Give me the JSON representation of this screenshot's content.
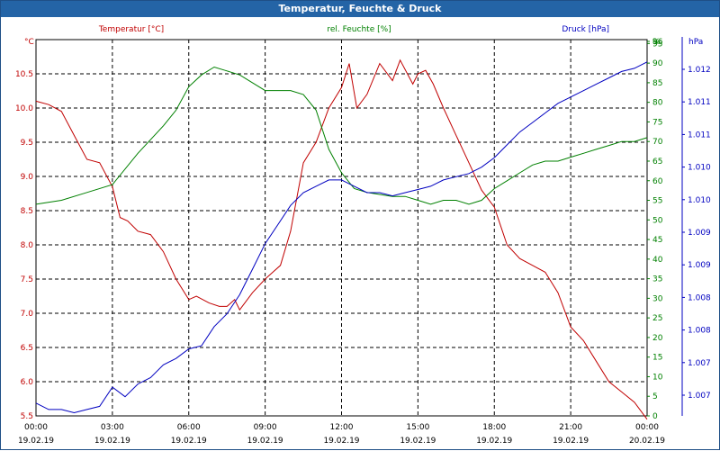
{
  "window": {
    "title": "Temperatur, Feuchte & Druck"
  },
  "colors": {
    "temperature": "#c00000",
    "humidity": "#008000",
    "pressure": "#0000c0",
    "grid": "#000000",
    "title_bar": "#2464a6"
  },
  "chart_data": {
    "type": "line",
    "title": "Temperatur, Feuchte & Druck",
    "legend": [
      "Temperatur [°C]",
      "rel. Feuchte [%]",
      "Druck [hPa]"
    ],
    "axes": {
      "left": {
        "unit": "°C",
        "ylim": [
          5.5,
          11.0
        ],
        "ticks": [
          "10.5",
          "10.0",
          "9.5",
          "9.0",
          "8.5",
          "8.0",
          "7.5",
          "7.0",
          "6.5",
          "6.0",
          "5.5"
        ]
      },
      "right1": {
        "unit": "%",
        "ylim": [
          0,
          96
        ],
        "ticks": [
          "96",
          "95",
          "90",
          "85",
          "80",
          "75",
          "70",
          "65",
          "60",
          "55",
          "50",
          "45",
          "40",
          "35",
          "30",
          "25",
          "20",
          "15",
          "10",
          "5",
          "0"
        ]
      },
      "right2": {
        "unit": "hPa",
        "ylim": [
          1006.6,
          1012.5
        ],
        "ticks": [
          "1.012",
          "1.011",
          "1.011",
          "1.010",
          "1.010",
          "1.009",
          "1.009",
          "1.008",
          "1.008",
          "1.007",
          "1.007"
        ]
      }
    },
    "xlim": [
      0,
      24
    ],
    "x_ticks": [
      {
        "time": "00:00",
        "date": "19.02.19"
      },
      {
        "time": "03:00",
        "date": "19.02.19"
      },
      {
        "time": "06:00",
        "date": "19.02.19"
      },
      {
        "time": "09:00",
        "date": "19.02.19"
      },
      {
        "time": "12:00",
        "date": "19.02.19"
      },
      {
        "time": "15:00",
        "date": "19.02.19"
      },
      {
        "time": "18:00",
        "date": "19.02.19"
      },
      {
        "time": "21:00",
        "date": "19.02.19"
      },
      {
        "time": "00:00",
        "date": "20.02.19"
      }
    ],
    "series": [
      {
        "name": "Temperatur [°C]",
        "axis": "left",
        "color": "#c00000",
        "x": [
          0,
          0.5,
          1,
          1.5,
          2,
          2.5,
          3,
          3.3,
          3.6,
          4,
          4.5,
          5,
          5.5,
          6,
          6.3,
          6.8,
          7.2,
          7.5,
          7.8,
          8,
          8.5,
          9,
          9.3,
          9.6,
          10,
          10.5,
          11,
          11.5,
          12,
          12.3,
          12.6,
          13,
          13.5,
          14,
          14.3,
          14.8,
          15,
          15.3,
          15.6,
          16,
          16.5,
          17,
          17.5,
          18,
          18.5,
          19,
          19.5,
          20,
          20.5,
          21,
          21.5,
          22,
          22.5,
          23,
          23.5,
          24
        ],
        "y": [
          10.1,
          10.05,
          9.95,
          9.6,
          9.25,
          9.2,
          8.85,
          8.4,
          8.35,
          8.2,
          8.15,
          7.9,
          7.5,
          7.2,
          7.25,
          7.15,
          7.1,
          7.1,
          7.2,
          7.05,
          7.3,
          7.5,
          7.6,
          7.7,
          8.2,
          9.2,
          9.5,
          10.0,
          10.3,
          10.65,
          10.0,
          10.2,
          10.65,
          10.4,
          10.7,
          10.35,
          10.5,
          10.55,
          10.35,
          10.0,
          9.6,
          9.2,
          8.8,
          8.55,
          8.0,
          7.8,
          7.7,
          7.6,
          7.3,
          6.8,
          6.6,
          6.3,
          6.0,
          5.85,
          5.7,
          5.45
        ]
      },
      {
        "name": "rel. Feuchte [%]",
        "axis": "right1",
        "color": "#008000",
        "x": [
          0,
          1,
          2,
          3,
          4,
          5,
          5.5,
          6,
          6.5,
          7,
          7.5,
          8,
          8.5,
          9,
          10,
          10.5,
          11,
          11.5,
          12,
          12.5,
          13,
          14,
          14.5,
          15,
          15.5,
          16,
          16.5,
          17,
          17.5,
          18,
          18.5,
          19,
          19.5,
          20,
          20.5,
          21,
          21.5,
          22,
          22.5,
          23,
          23.5,
          24
        ],
        "y": [
          54,
          55,
          57,
          59,
          67,
          74,
          78,
          84,
          87,
          89,
          88,
          87,
          85,
          83,
          83,
          82,
          78,
          68,
          62,
          58,
          57,
          56,
          56,
          55,
          54,
          55,
          55,
          54,
          55,
          58,
          60,
          62,
          64,
          65,
          65,
          66,
          67,
          68,
          69,
          70,
          70,
          71
        ]
      },
      {
        "name": "Druck [hPa]",
        "axis": "right2",
        "color": "#0000c0",
        "x": [
          0,
          0.5,
          1,
          1.5,
          2,
          2.5,
          3,
          3.5,
          4,
          4.5,
          5,
          5.5,
          6,
          6.5,
          7,
          7.5,
          8,
          8.5,
          9,
          9.5,
          10,
          10.5,
          11,
          11.5,
          12,
          12.5,
          13,
          13.5,
          14,
          14.5,
          15,
          15.5,
          16,
          16.5,
          17,
          17.5,
          18,
          18.5,
          19,
          19.5,
          20,
          20.5,
          21,
          21.5,
          22,
          22.5,
          23,
          23.5,
          24
        ],
        "y": [
          1006.8,
          1006.7,
          1006.7,
          1006.65,
          1006.7,
          1006.75,
          1007.05,
          1006.9,
          1007.1,
          1007.2,
          1007.4,
          1007.5,
          1007.65,
          1007.7,
          1008.0,
          1008.2,
          1008.5,
          1008.9,
          1009.3,
          1009.6,
          1009.9,
          1010.1,
          1010.2,
          1010.3,
          1010.3,
          1010.2,
          1010.1,
          1010.1,
          1010.05,
          1010.1,
          1010.15,
          1010.2,
          1010.3,
          1010.35,
          1010.4,
          1010.5,
          1010.65,
          1010.85,
          1011.05,
          1011.2,
          1011.35,
          1011.5,
          1011.6,
          1011.7,
          1011.8,
          1011.9,
          1012.0,
          1012.05,
          1012.15
        ]
      }
    ]
  }
}
